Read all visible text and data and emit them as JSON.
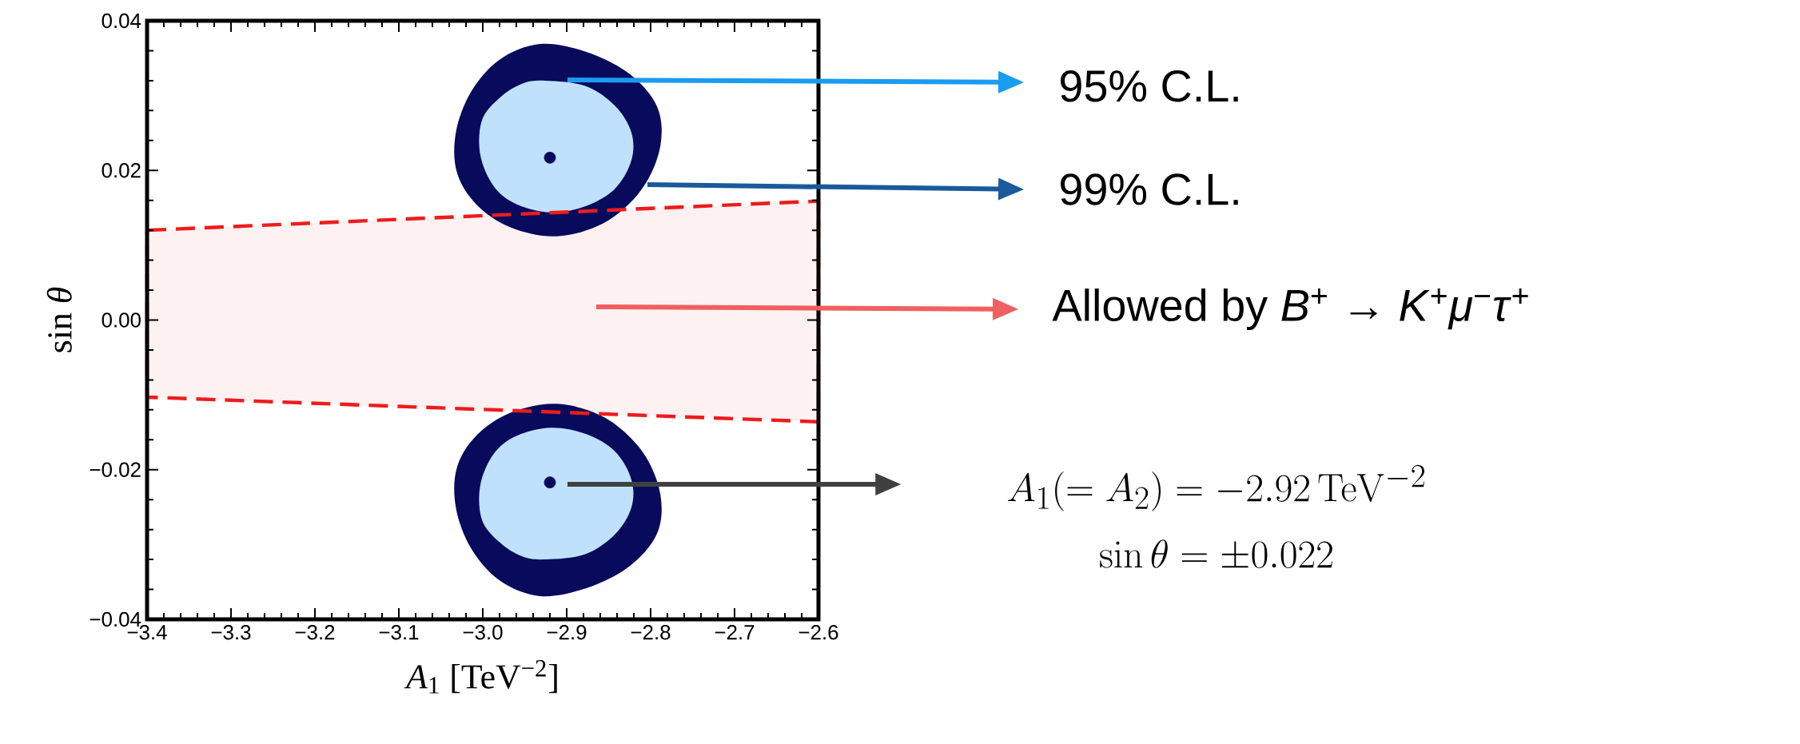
{
  "chart_data": {
    "type": "area",
    "xlabel": "*A*$_{1}$ [TeV$^{−2}$]",
    "ylabel": "sin *θ*",
    "xlim": [
      -3.4,
      -2.6
    ],
    "ylim": [
      -0.04,
      0.04
    ],
    "xticks": [
      {
        "value": -3.4,
        "label": "−3.4"
      },
      {
        "value": -3.3,
        "label": "−3.3"
      },
      {
        "value": -3.2,
        "label": "−3.2"
      },
      {
        "value": -3.1,
        "label": "−3.1"
      },
      {
        "value": -3.0,
        "label": "−3.0"
      },
      {
        "value": -2.9,
        "label": "−2.9"
      },
      {
        "value": -2.8,
        "label": "−2.8"
      },
      {
        "value": -2.7,
        "label": "−2.7"
      },
      {
        "value": -2.6,
        "label": "−2.6"
      }
    ],
    "yticks": [
      {
        "value": -0.04,
        "label": "−0.04"
      },
      {
        "value": -0.02,
        "label": "−0.02"
      },
      {
        "value": 0,
        "label": "0.00"
      },
      0.02,
      0.04
    ],
    "series": [
      {
        "color": "#ee1c1c",
        "line_style": "dashed",
        "x": [
          -3.4,
          -2.6,
          -2.6,
          -3.4
        ],
        "values": [
          0.012,
          0.0159,
          -0.0136,
          -0.0103
        ]
      },
      {
        "color": "#080a5c",
        "x": [
          -2.932,
          -2.878,
          -2.83,
          -2.798,
          -2.787,
          -2.793,
          -2.816,
          -2.857,
          -2.912,
          -2.967,
          -3.008,
          -3.031,
          -3.032,
          -3.014,
          -2.98
        ],
        "values": [
          0.0369,
          0.0359,
          0.0333,
          0.0297,
          0.0259,
          0.0213,
          0.0167,
          0.0129,
          0.0112,
          0.0124,
          0.0155,
          0.0198,
          0.0251,
          0.0305,
          0.0348
        ]
      },
      {
        "color": "#080a5c",
        "x": [
          -2.932,
          -2.878,
          -2.83,
          -2.798,
          -2.787,
          -2.793,
          -2.816,
          -2.857,
          -2.912,
          -2.967,
          -3.008,
          -3.031,
          -3.032,
          -3.014,
          -2.98
        ],
        "values": [
          -0.0369,
          -0.0359,
          -0.0333,
          -0.0297,
          -0.0259,
          -0.0213,
          -0.0167,
          -0.0129,
          -0.0112,
          -0.0124,
          -0.0155,
          -0.0198,
          -0.0251,
          -0.0305,
          -0.0348
        ]
      },
      {
        "color": "#bfe1fb",
        "x": [
          -2.925,
          -2.878,
          -2.843,
          -2.823,
          -2.823,
          -2.843,
          -2.878,
          -2.919,
          -2.96,
          -2.987,
          -3.003,
          -3.001,
          -2.98,
          -2.953
        ],
        "values": [
          0.032,
          0.0313,
          0.0287,
          0.0251,
          0.0213,
          0.0175,
          0.0152,
          0.0144,
          0.0155,
          0.0179,
          0.0221,
          0.0267,
          0.0297,
          0.0316
        ]
      },
      {
        "color": "#bfe1fb",
        "x": [
          -2.925,
          -2.878,
          -2.843,
          -2.823,
          -2.823,
          -2.843,
          -2.878,
          -2.919,
          -2.96,
          -2.987,
          -3.003,
          -3.001,
          -2.98,
          -2.953
        ],
        "values": [
          -0.032,
          -0.0313,
          -0.0287,
          -0.0251,
          -0.0213,
          -0.0175,
          -0.0152,
          -0.0144,
          -0.0155,
          -0.0179,
          -0.0221,
          -0.0267,
          -0.0297,
          -0.0316
        ]
      },
      {
        "type": "scatter",
        "color": "#080a5c",
        "x": [
          -2.92,
          -2.92
        ],
        "values": [
          0.0217,
          -0.0217
        ]
      }
    ],
    "annotations": [
      "95% C.L.",
      "99% C.L.",
      "Allowed by *B*$^{+}$ → *K*$^{+}$*μ*$^{−}$*τ*$^{+}$",
      "A_1(=A_2) = -2.92\\,\\mathrm{TeV}^{-2}",
      "\\sin\\theta = \\pm 0.022"
    ],
    "grid": false
  }
}
